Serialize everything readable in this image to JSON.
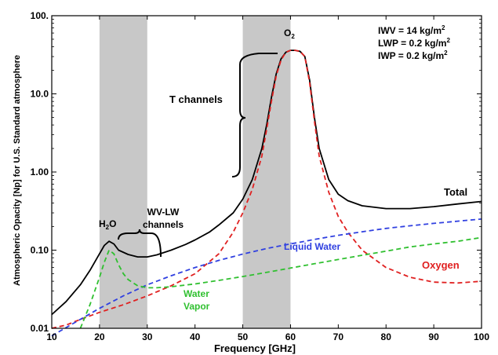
{
  "chart_data": {
    "type": "line",
    "xlabel": "Frequency [GHz]",
    "ylabel": "Atmospheric Opacity [Np] for U.S. Standard atmosphere",
    "xlim": [
      10,
      100
    ],
    "ylim": [
      0.01,
      100
    ],
    "yscale": "log",
    "grid": false,
    "x_ticks": [
      10,
      20,
      30,
      40,
      50,
      60,
      70,
      80,
      90,
      100
    ],
    "y_ticks": [
      {
        "value": 0.01,
        "label": "0.01"
      },
      {
        "value": 0.1,
        "label": "0.10"
      },
      {
        "value": 1,
        "label": "1.00"
      },
      {
        "value": 10,
        "label": "10.0"
      },
      {
        "value": 100,
        "label": "100."
      }
    ],
    "bands": [
      {
        "x0": 20,
        "x1": 30,
        "label": "WV-LW channels"
      },
      {
        "x0": 50,
        "x1": 60,
        "label": "T channels"
      }
    ],
    "legend_box": [
      "IWV = 14 kg/m2",
      "LWP = 0.2 kg/m2",
      "IWP = 0.2 kg/m2"
    ],
    "series": [
      {
        "name": "Total",
        "color": "#000000",
        "dash": "solid",
        "x": [
          10,
          13,
          16,
          18,
          20,
          21,
          22,
          23,
          24,
          26,
          28,
          30,
          32,
          35,
          38,
          40,
          43,
          45,
          48,
          50,
          52,
          54,
          55,
          56,
          57,
          58,
          59,
          60,
          61,
          62,
          63,
          64,
          65,
          66,
          68,
          70,
          72,
          75,
          80,
          85,
          90,
          95,
          100
        ],
        "y": [
          0.015,
          0.022,
          0.036,
          0.055,
          0.09,
          0.115,
          0.13,
          0.12,
          0.1,
          0.088,
          0.082,
          0.082,
          0.087,
          0.1,
          0.118,
          0.135,
          0.17,
          0.21,
          0.3,
          0.45,
          0.8,
          2,
          4,
          9,
          18,
          28,
          34,
          36,
          36,
          35,
          30,
          15,
          5,
          2,
          0.8,
          0.52,
          0.43,
          0.37,
          0.34,
          0.34,
          0.36,
          0.39,
          0.42
        ]
      },
      {
        "name": "Oxygen",
        "color": "#e02020",
        "dash": "dashed",
        "x": [
          10,
          13,
          16,
          20,
          25,
          30,
          35,
          40,
          45,
          48,
          50,
          52,
          54,
          55,
          56,
          57,
          58,
          59,
          60,
          61,
          62,
          63,
          64,
          65,
          66,
          68,
          70,
          72,
          75,
          80,
          85,
          90,
          95,
          100
        ],
        "y": [
          0.01,
          0.011,
          0.013,
          0.016,
          0.02,
          0.026,
          0.035,
          0.05,
          0.09,
          0.17,
          0.3,
          0.6,
          1.6,
          3.5,
          8,
          17,
          27,
          34,
          36,
          36,
          35,
          30,
          14,
          4.5,
          1.6,
          0.55,
          0.27,
          0.17,
          0.1,
          0.06,
          0.045,
          0.039,
          0.038,
          0.04
        ]
      },
      {
        "name": "Liquid Water",
        "color": "#3040e0",
        "dash": "dashed",
        "x": [
          10,
          15,
          20,
          25,
          30,
          35,
          40,
          45,
          50,
          55,
          60,
          65,
          70,
          75,
          80,
          85,
          90,
          95,
          100
        ],
        "y": [
          0.008,
          0.012,
          0.018,
          0.026,
          0.036,
          0.047,
          0.06,
          0.074,
          0.089,
          0.105,
          0.12,
          0.137,
          0.155,
          0.172,
          0.19,
          0.205,
          0.22,
          0.235,
          0.25
        ]
      },
      {
        "name": "Water Vapor",
        "color": "#30c030",
        "dash": "dashed",
        "x": [
          16,
          18,
          20,
          21,
          22,
          23,
          24,
          25,
          26,
          28,
          30,
          32,
          35,
          40,
          45,
          50,
          55,
          60,
          65,
          70,
          75,
          80,
          85,
          90,
          95,
          100
        ],
        "y": [
          0.01,
          0.02,
          0.045,
          0.07,
          0.1,
          0.09,
          0.065,
          0.05,
          0.042,
          0.035,
          0.033,
          0.033,
          0.034,
          0.037,
          0.041,
          0.046,
          0.052,
          0.059,
          0.067,
          0.076,
          0.086,
          0.097,
          0.11,
          0.12,
          0.13,
          0.145
        ]
      }
    ],
    "annotations": {
      "h2o": "H2O",
      "o2": "O2",
      "t_channels": "T channels",
      "wv_lw_line1": "WV-LW",
      "wv_lw_line2": "channels",
      "total": "Total",
      "liquid_water": "Liquid Water",
      "oxygen": "Oxygen",
      "water_line1": "Water",
      "water_line2": "Vapor"
    }
  }
}
